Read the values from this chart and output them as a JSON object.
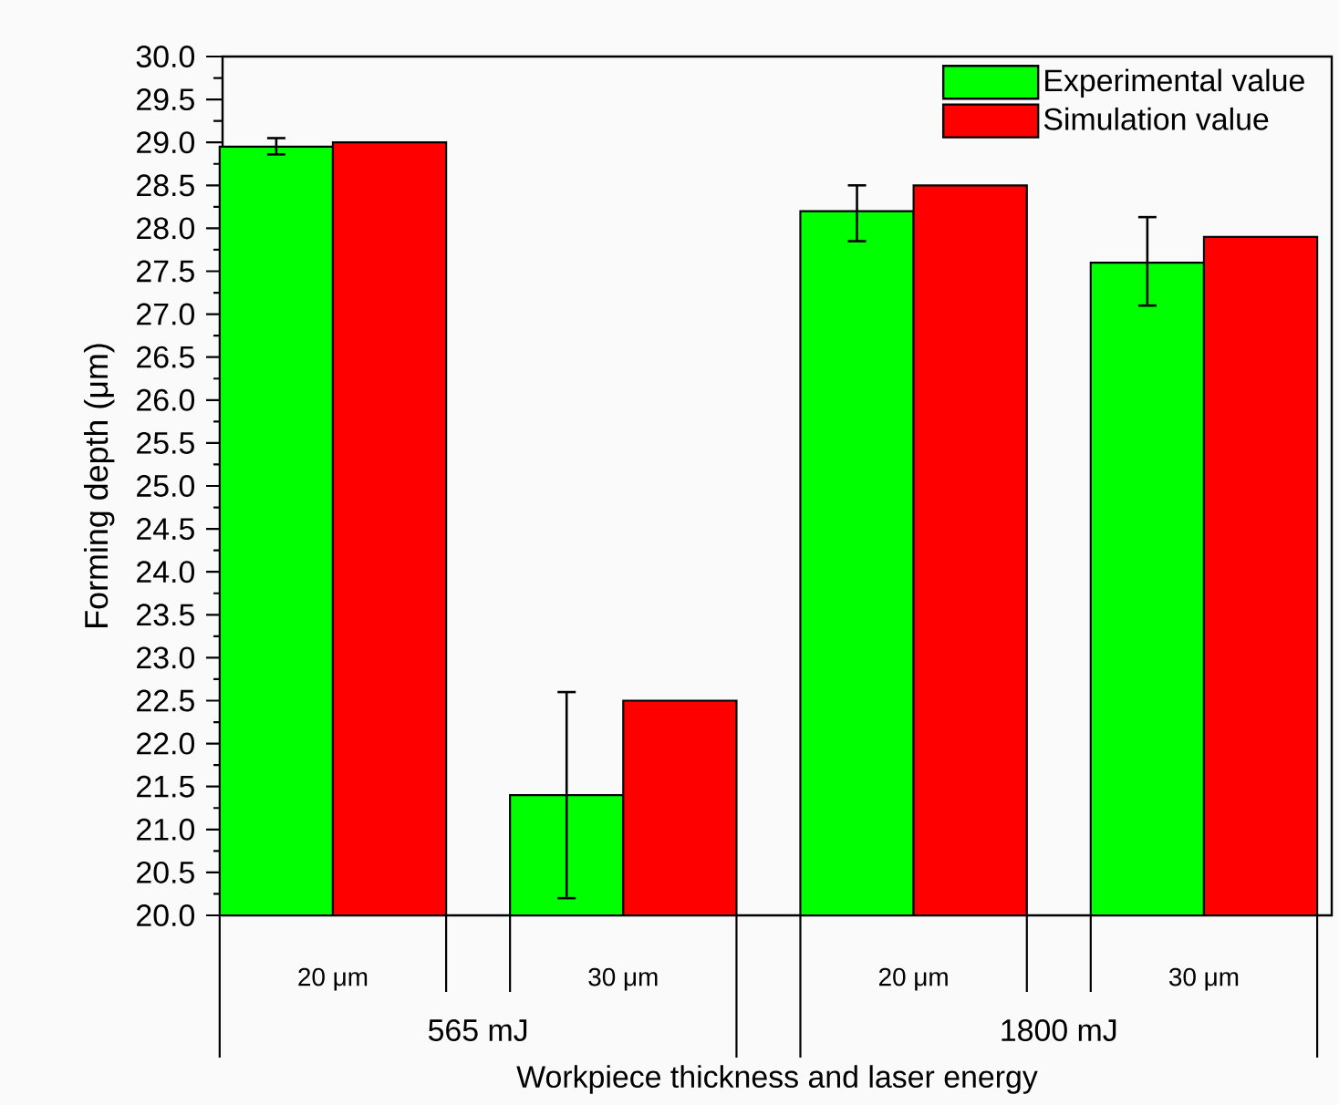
{
  "chart_data": {
    "type": "bar",
    "xlabel": "Workpiece thickness and laser energy",
    "ylabel": "Forming depth (μm)",
    "categories": [
      "20 μm",
      "30 μm",
      "20 μm",
      "30 μm"
    ],
    "series": [
      {
        "name": "Experimental value",
        "color": "#00ff00",
        "values": [
          28.95,
          21.4,
          28.2,
          27.6
        ],
        "errors": [
          [
            28.86,
            29.05
          ],
          [
            20.2,
            22.6
          ],
          [
            27.85,
            28.5
          ],
          [
            27.1,
            28.13
          ]
        ]
      },
      {
        "name": "Simulation value",
        "color": "#ff0000",
        "values": [
          29.0,
          22.5,
          28.5,
          27.9
        ]
      }
    ],
    "annotations": [
      "565 mJ",
      "1800 mJ"
    ],
    "ylim": [
      20,
      30
    ],
    "yticks": [
      {
        "value": 20,
        "label": "20.0"
      },
      {
        "value": 20.5,
        "label": "20.5"
      },
      {
        "value": 21,
        "label": "21.0"
      },
      {
        "value": 21.5,
        "label": "21.5"
      },
      {
        "value": 22,
        "label": "22.0"
      },
      {
        "value": 22.5,
        "label": "22.5"
      },
      {
        "value": 23,
        "label": "23.0"
      },
      {
        "value": 23.5,
        "label": "23.5"
      },
      {
        "value": 24,
        "label": "24.0"
      },
      {
        "value": 24.5,
        "label": "24.5"
      },
      {
        "value": 25,
        "label": "25.0"
      },
      {
        "value": 25.5,
        "label": "25.5"
      },
      {
        "value": 26,
        "label": "26.0"
      },
      {
        "value": 26.5,
        "label": "26.5"
      },
      {
        "value": 27,
        "label": "27.0"
      },
      {
        "value": 27.5,
        "label": "27.5"
      },
      {
        "value": 28,
        "label": "28.0"
      },
      {
        "value": 28.5,
        "label": "28.5"
      },
      {
        "value": 29,
        "label": "29.0"
      },
      {
        "value": 29.5,
        "label": "29.5"
      },
      {
        "value": 30,
        "label": "30.0"
      }
    ],
    "legend": "top right"
  }
}
